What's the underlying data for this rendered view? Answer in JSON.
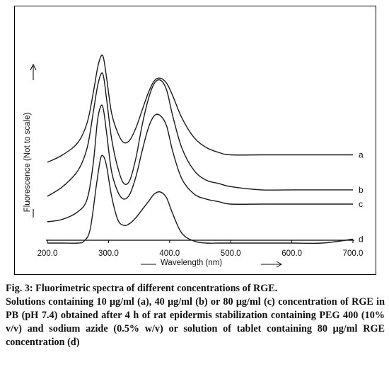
{
  "figure": {
    "caption_title": "Fig. 3: Fluorimetric spectra of different concentrations of RGE.",
    "caption_body": "Solutions containing 10 μg/ml (a), 40 μg/ml (b) or 80 μg/ml (c) concentration of RGE in PB (pH 7.4) obtained after 4 h of rat epidermis stabilization containing PEG 400 (10% v/v) and sodium azide (0.5% w/v) or solution of tablet containing 80 μg/ml RGE concentration (d)"
  },
  "chart_data": {
    "type": "line",
    "title": "",
    "xlabel": "Wavelength (nm)",
    "ylabel": "Fluorescence (Not to scale)",
    "xlim": [
      200,
      700
    ],
    "ylim": [
      0,
      100
    ],
    "x_ticks": [
      "200.0",
      "300.0",
      "400.0",
      "500.0",
      "600.0",
      "700.0"
    ],
    "y_scale_note": "no numeric y axis",
    "grid": false,
    "series": [
      {
        "name": "a",
        "x": [
          200,
          225,
          250,
          265,
          275,
          282,
          288,
          292,
          297,
          305,
          315,
          325,
          335,
          345,
          355,
          365,
          375,
          385,
          395,
          405,
          420,
          440,
          460,
          480,
          500,
          550,
          600,
          650,
          700
        ],
        "y": [
          54,
          57,
          62,
          70,
          82,
          92,
          97,
          96,
          88,
          74,
          66,
          62,
          63,
          68,
          75,
          82,
          87,
          88,
          86,
          81,
          72,
          64,
          60,
          58,
          57,
          57,
          57,
          57,
          57
        ]
      },
      {
        "name": "b",
        "x": [
          200,
          225,
          250,
          265,
          275,
          282,
          288,
          292,
          297,
          305,
          315,
          325,
          335,
          345,
          355,
          365,
          375,
          385,
          395,
          405,
          420,
          440,
          460,
          480,
          500,
          550,
          600,
          650,
          700
        ],
        "y": [
          33,
          36,
          41,
          48,
          59,
          67,
          71,
          70,
          63,
          51,
          42,
          37,
          38,
          45,
          55,
          63,
          68,
          69,
          66,
          58,
          48,
          41,
          38,
          37,
          36,
          35,
          35,
          35,
          35
        ]
      },
      {
        "name": "c",
        "x": [
          200,
          225,
          250,
          265,
          275,
          282,
          288,
          292,
          297,
          305,
          315,
          325,
          335,
          345,
          355,
          365,
          375,
          385,
          395,
          405,
          420,
          440,
          460,
          480,
          500,
          550,
          600,
          650,
          700
        ],
        "y": [
          10,
          11,
          14,
          19,
          33,
          50,
          56,
          54,
          45,
          30,
          22,
          19,
          21,
          28,
          38,
          47,
          52,
          52,
          48,
          38,
          27,
          21,
          19,
          18,
          17,
          17,
          17,
          17,
          17
        ]
      },
      {
        "name": "d",
        "x": [
          200,
          225,
          250,
          260,
          270,
          280,
          287,
          292,
          297,
          305,
          315,
          325,
          335,
          345,
          355,
          365,
          375,
          385,
          395,
          405,
          420,
          440,
          460,
          480,
          500,
          550,
          600,
          650,
          700
        ],
        "y": [
          1,
          1,
          1,
          2,
          8,
          30,
          44,
          45,
          40,
          25,
          13,
          10,
          11,
          14,
          18,
          22,
          26,
          27,
          24,
          16,
          6,
          2,
          1,
          1,
          1,
          1,
          1,
          1,
          3
        ]
      }
    ]
  }
}
